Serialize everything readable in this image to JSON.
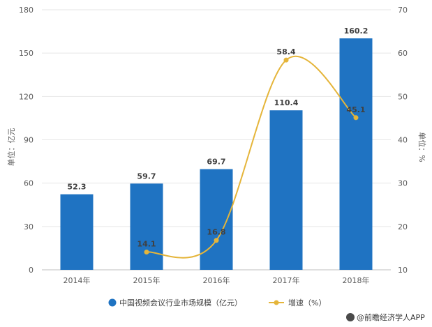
{
  "chart_data": {
    "type": "bar",
    "categories": [
      "2014年",
      "2015年",
      "2016年",
      "2017年",
      "2018年"
    ],
    "series": [
      {
        "name": "中国视频会议行业市场规模（亿元）",
        "type": "bar",
        "axis": "left",
        "values": [
          52.3,
          59.7,
          69.7,
          110.4,
          160.2
        ],
        "labels": [
          "52.3",
          "59.7",
          "69.7",
          "110.4",
          "160.2"
        ],
        "color": "#1f73c2"
      },
      {
        "name": "增速（%）",
        "type": "line",
        "axis": "right",
        "smooth": true,
        "values": [
          null,
          14.1,
          16.8,
          58.4,
          45.1
        ],
        "labels": [
          "",
          "14.1",
          "16.8",
          "58.4",
          "45.1"
        ],
        "color": "#e5b53a"
      }
    ],
    "ylabel": "单位：亿元",
    "y2label": "单位：%",
    "ylim": [
      0,
      180
    ],
    "yticks": [
      "0",
      "30",
      "60",
      "90",
      "120",
      "150",
      "180"
    ],
    "y2lim": [
      10,
      70
    ],
    "y2ticks": [
      "10",
      "20",
      "30",
      "40",
      "50",
      "60",
      "70"
    ],
    "grid": true,
    "legend_position": "bottom"
  },
  "source": {
    "text": "@前瞻经济学人APP"
  }
}
